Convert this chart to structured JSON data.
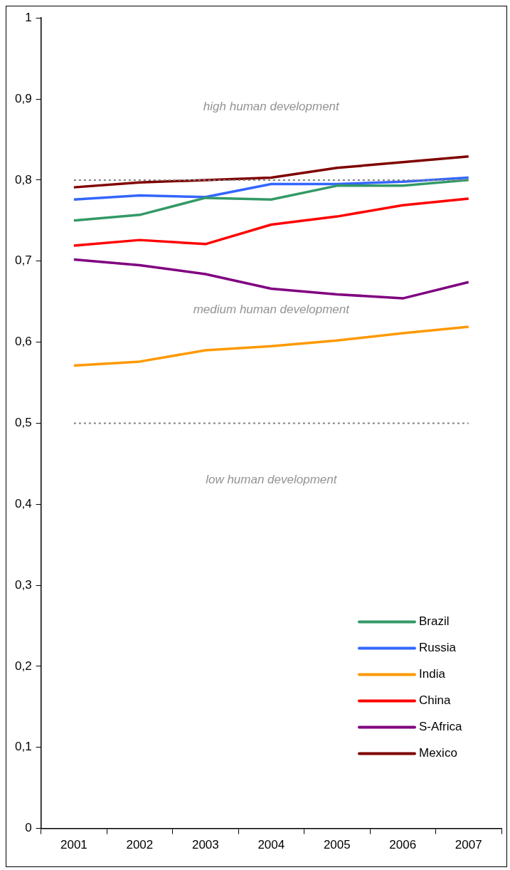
{
  "chart_data": {
    "type": "line",
    "categories": [
      "2001",
      "2002",
      "2003",
      "2004",
      "2005",
      "2006",
      "2007"
    ],
    "series": [
      {
        "name": "Brazil",
        "color": "#339966",
        "values": [
          0.75,
          0.757,
          0.778,
          0.776,
          0.793,
          0.793,
          0.8
        ]
      },
      {
        "name": "Russia",
        "color": "#3366ff",
        "values": [
          0.776,
          0.781,
          0.779,
          0.795,
          0.795,
          0.798,
          0.803
        ]
      },
      {
        "name": "India",
        "color": "#ff9900",
        "values": [
          0.571,
          0.576,
          0.59,
          0.595,
          0.602,
          0.611,
          0.619
        ]
      },
      {
        "name": "China",
        "color": "#ff0000",
        "values": [
          0.719,
          0.726,
          0.721,
          0.745,
          0.755,
          0.769,
          0.777
        ]
      },
      {
        "name": "S-Africa",
        "color": "#800080",
        "values": [
          0.702,
          0.695,
          0.684,
          0.666,
          0.659,
          0.654,
          0.674
        ]
      },
      {
        "name": "Mexico",
        "color": "#800000",
        "values": [
          0.791,
          0.797,
          0.8,
          0.803,
          0.815,
          0.822,
          0.829
        ]
      }
    ],
    "ylim": [
      0,
      1
    ],
    "yticks": [
      0,
      {
        "value": 0.1,
        "label": "0,1"
      },
      {
        "value": 0.2,
        "label": "0,2"
      },
      {
        "value": 0.3,
        "label": "0,3"
      },
      {
        "value": 0.4,
        "label": "0,4"
      },
      {
        "value": 0.5,
        "label": "0,5"
      },
      {
        "value": 0.6,
        "label": "0,6"
      },
      {
        "value": 0.7,
        "label": "0,7"
      },
      {
        "value": 0.8,
        "label": "0,8"
      },
      {
        "value": 0.9,
        "label": "0,9"
      },
      1
    ],
    "ref_lines": [
      {
        "axis": "y",
        "value": 0.8,
        "color": "#808080",
        "line_style": "dotted"
      },
      {
        "axis": "y",
        "value": 0.5,
        "color": "#808080",
        "line_style": "dotted"
      }
    ],
    "annotations": [
      "high human development",
      "medium human development",
      "low human development"
    ],
    "legend": "bottom right",
    "grid": false,
    "marker": "none",
    "line_style": "solid"
  }
}
